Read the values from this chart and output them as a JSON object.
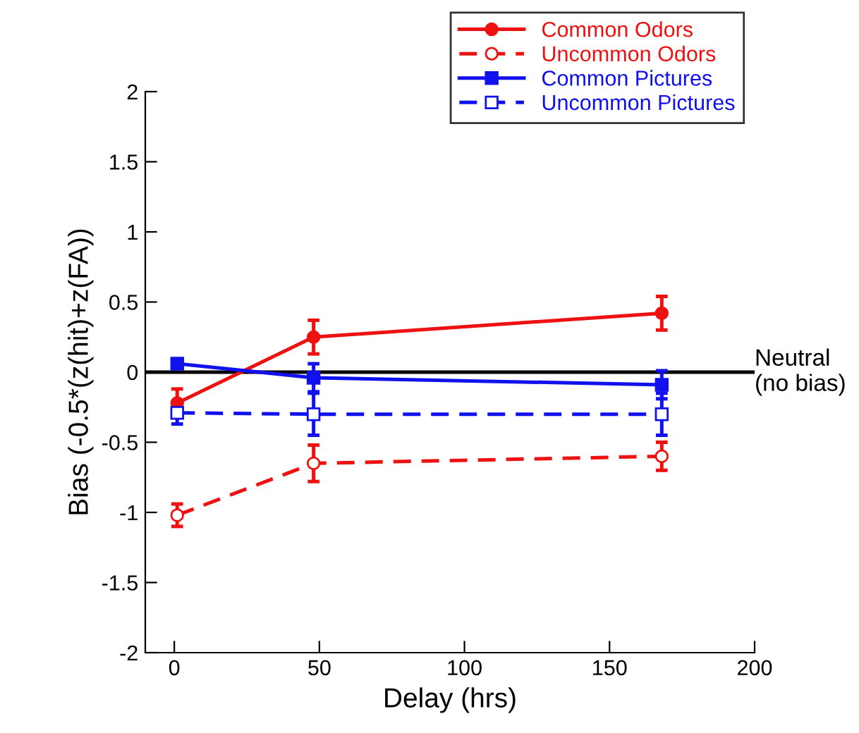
{
  "chart_data": {
    "type": "line",
    "xlabel": "Delay (hrs)",
    "ylabel": "Bias (-0.5*(z(hit)+z(FA))",
    "xlim": [
      -10,
      200
    ],
    "xticks": [
      0,
      50,
      100,
      150,
      200
    ],
    "ylim": [
      -2,
      2
    ],
    "yticks": [
      -2,
      -1.5,
      -1,
      -0.5,
      0,
      0.5,
      1,
      1.5,
      2
    ],
    "grid": false,
    "legend": "top right",
    "ref_lines": [
      {
        "axis": "y",
        "value": 0,
        "label": "Neutral\n(no bias)",
        "color": "#000000"
      }
    ],
    "series": [
      {
        "name": "Common Odors",
        "color": "#ee1111",
        "x": [
          1,
          48,
          168
        ],
        "values": [
          -0.22,
          0.25,
          0.42
        ],
        "errors": [
          0.1,
          0.12,
          0.12
        ],
        "marker": "circle",
        "line_style": "solid"
      },
      {
        "name": "Uncommon Odors",
        "color": "#ee1111",
        "x": [
          1,
          48,
          168
        ],
        "values": [
          -1.02,
          -0.65,
          -0.6
        ],
        "errors": [
          0.08,
          0.13,
          0.1
        ],
        "marker": "circle",
        "line_style": "dashed"
      },
      {
        "name": "Common Pictures",
        "color": "#1111ee",
        "x": [
          1,
          48,
          168
        ],
        "values": [
          0.06,
          -0.04,
          -0.09
        ],
        "errors": [
          0.03,
          0.1,
          0.1
        ],
        "marker": "square",
        "line_style": "solid"
      },
      {
        "name": "Uncommon Pictures",
        "color": "#1111ee",
        "x": [
          1,
          48,
          168
        ],
        "values": [
          -0.29,
          -0.3,
          -0.3
        ],
        "errors": [
          0.08,
          0.15,
          0.15
        ],
        "marker": "square",
        "line_style": "dashed"
      }
    ]
  }
}
